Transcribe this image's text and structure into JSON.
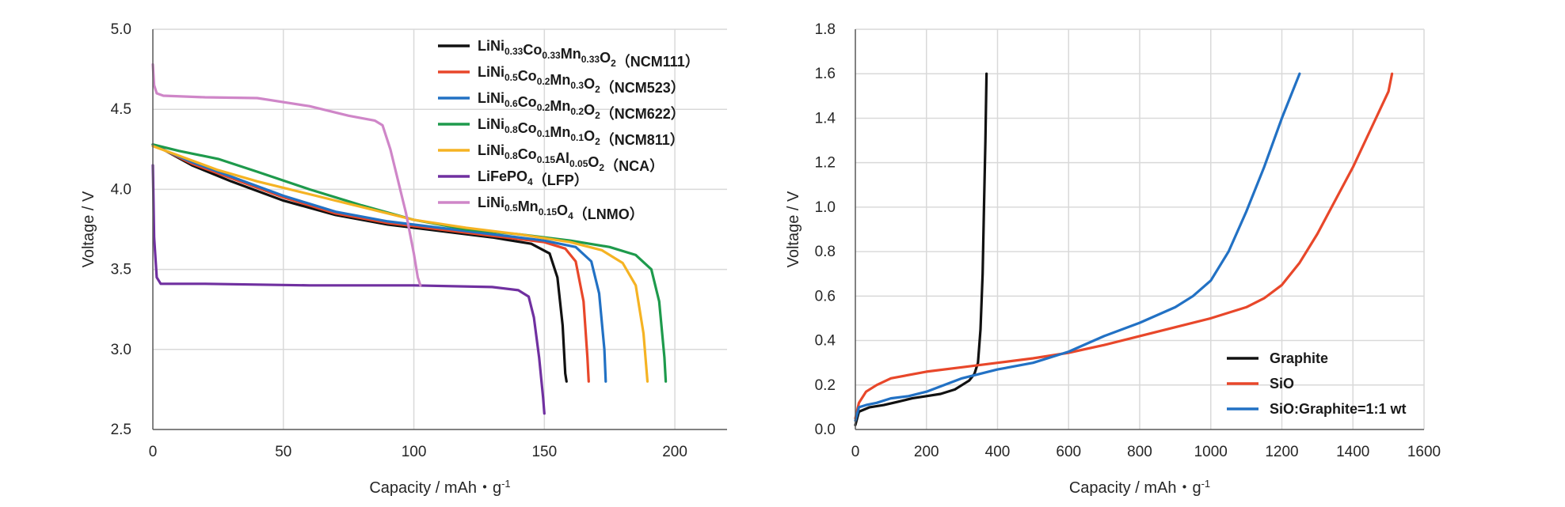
{
  "chart_data": [
    {
      "type": "line",
      "title": "",
      "xlabel": "Capacity / mAh・g",
      "xlabel_sup": "-1",
      "ylabel": "Voltage / V",
      "xlim": [
        0,
        220
      ],
      "ylim": [
        2.5,
        5.0
      ],
      "xticks": [
        "0",
        "50",
        "100",
        "150",
        "200"
      ],
      "yticks": [
        "2.5",
        "3.0",
        "3.5",
        "4.0",
        "4.5",
        "5.0"
      ],
      "legend_position": "top-right",
      "series": [
        {
          "name": "LiNi0.33Co0.33Mn0.33O2 (NCM111)",
          "name_parts": [
            [
              "LiNi",
              ""
            ],
            [
              "0.33",
              "sub"
            ],
            [
              "Co",
              ""
            ],
            [
              "0.33",
              "sub"
            ],
            [
              "Mn",
              ""
            ],
            [
              "0.33",
              "sub"
            ],
            [
              "O",
              ""
            ],
            [
              "2",
              "sub"
            ],
            [
              "（NCM111）",
              ""
            ]
          ],
          "color": "#111111",
          "x": [
            0,
            5,
            15,
            30,
            50,
            70,
            90,
            110,
            130,
            145,
            152,
            155,
            157,
            158,
            158.5
          ],
          "y": [
            4.28,
            4.24,
            4.15,
            4.05,
            3.93,
            3.84,
            3.78,
            3.74,
            3.7,
            3.66,
            3.6,
            3.45,
            3.15,
            2.85,
            2.8
          ]
        },
        {
          "name": "LiNi0.5Co0.2Mn0.3O2 (NCM523)",
          "name_parts": [
            [
              "LiNi",
              ""
            ],
            [
              "0.5",
              "sub"
            ],
            [
              "Co",
              ""
            ],
            [
              "0.2",
              "sub"
            ],
            [
              "Mn",
              ""
            ],
            [
              "0.3",
              "sub"
            ],
            [
              "O",
              ""
            ],
            [
              "2",
              "sub"
            ],
            [
              "（NCM523）",
              ""
            ]
          ],
          "color": "#E8472A",
          "x": [
            0,
            5,
            15,
            30,
            50,
            70,
            90,
            110,
            130,
            150,
            158,
            162,
            165,
            166.5,
            167
          ],
          "y": [
            4.28,
            4.24,
            4.16,
            4.07,
            3.95,
            3.85,
            3.79,
            3.75,
            3.71,
            3.67,
            3.63,
            3.55,
            3.3,
            2.95,
            2.8
          ]
        },
        {
          "name": "LiNi0.6Co0.2Mn0.2O2 (NCM622)",
          "name_parts": [
            [
              "LiNi",
              ""
            ],
            [
              "0.6",
              "sub"
            ],
            [
              "Co",
              ""
            ],
            [
              "0.2",
              "sub"
            ],
            [
              "Mn",
              ""
            ],
            [
              "0.2",
              "sub"
            ],
            [
              "O",
              ""
            ],
            [
              "2",
              "sub"
            ],
            [
              "（NCM622）",
              ""
            ]
          ],
          "color": "#2271C4",
          "x": [
            0,
            5,
            15,
            30,
            50,
            70,
            90,
            110,
            130,
            150,
            162,
            168,
            171,
            173,
            173.5
          ],
          "y": [
            4.28,
            4.24,
            4.17,
            4.08,
            3.96,
            3.86,
            3.8,
            3.76,
            3.72,
            3.68,
            3.64,
            3.55,
            3.35,
            3.0,
            2.8
          ]
        },
        {
          "name": "LiNi0.8Co0.1Mn0.1O2 (NCM811)",
          "name_parts": [
            [
              "LiNi",
              ""
            ],
            [
              "0.8",
              "sub"
            ],
            [
              "Co",
              ""
            ],
            [
              "0.1",
              "sub"
            ],
            [
              "Mn",
              ""
            ],
            [
              "0.1",
              "sub"
            ],
            [
              "O",
              ""
            ],
            [
              "2",
              "sub"
            ],
            [
              "（NCM811）",
              ""
            ]
          ],
          "color": "#1E9A4C",
          "x": [
            0,
            10,
            25,
            40,
            60,
            80,
            100,
            120,
            140,
            160,
            175,
            185,
            191,
            194,
            196,
            196.5
          ],
          "y": [
            4.28,
            4.24,
            4.19,
            4.11,
            4.0,
            3.9,
            3.81,
            3.75,
            3.72,
            3.68,
            3.64,
            3.59,
            3.5,
            3.3,
            2.95,
            2.8
          ]
        },
        {
          "name": "LiNi0.8Co0.15Al0.05O2 (NCA)",
          "name_parts": [
            [
              "LiNi",
              ""
            ],
            [
              "0.8",
              "sub"
            ],
            [
              "Co",
              ""
            ],
            [
              "0.15",
              "sub"
            ],
            [
              "Al",
              ""
            ],
            [
              "0.05",
              "sub"
            ],
            [
              "O",
              ""
            ],
            [
              "2",
              "sub"
            ],
            [
              "（NCA）",
              ""
            ]
          ],
          "color": "#F5B323",
          "x": [
            0,
            10,
            25,
            40,
            60,
            80,
            100,
            120,
            140,
            160,
            172,
            180,
            185,
            188,
            189.5
          ],
          "y": [
            4.27,
            4.21,
            4.12,
            4.05,
            3.97,
            3.89,
            3.81,
            3.76,
            3.72,
            3.67,
            3.62,
            3.54,
            3.4,
            3.1,
            2.8
          ]
        },
        {
          "name": "LiFePO4 (LFP)",
          "name_parts": [
            [
              "LiFePO",
              ""
            ],
            [
              "4",
              "sub"
            ],
            [
              "（LFP）",
              ""
            ]
          ],
          "color": "#7030A0",
          "x": [
            0,
            0.5,
            1.5,
            3,
            20,
            60,
            100,
            130,
            140,
            144,
            146,
            148,
            149.5,
            150
          ],
          "y": [
            4.15,
            3.7,
            3.45,
            3.41,
            3.41,
            3.4,
            3.4,
            3.39,
            3.37,
            3.33,
            3.2,
            2.95,
            2.7,
            2.6
          ]
        },
        {
          "name": "LiNi0.5Mn0.15O4 (LNMO)",
          "name_parts": [
            [
              "LiNi",
              ""
            ],
            [
              "0.5",
              "sub"
            ],
            [
              "Mn",
              ""
            ],
            [
              "0.15",
              "sub"
            ],
            [
              "O",
              ""
            ],
            [
              "4",
              "sub"
            ],
            [
              "（LNMO）",
              ""
            ]
          ],
          "color": "#CF86C8",
          "x": [
            0,
            0.5,
            1.5,
            4,
            20,
            40,
            60,
            75,
            85,
            88,
            91,
            94,
            97,
            100,
            101.5,
            102.5
          ],
          "y": [
            4.78,
            4.65,
            4.6,
            4.585,
            4.575,
            4.57,
            4.52,
            4.46,
            4.43,
            4.4,
            4.25,
            4.05,
            3.85,
            3.6,
            3.45,
            3.4
          ]
        }
      ]
    },
    {
      "type": "line",
      "title": "",
      "xlabel": "Capacity / mAh・g",
      "xlabel_sup": "-1",
      "ylabel": "Voltage / V",
      "xlim": [
        0,
        1600
      ],
      "ylim": [
        0,
        1.8
      ],
      "xticks": [
        "0",
        "200",
        "400",
        "600",
        "800",
        "1000",
        "1200",
        "1400",
        "1600"
      ],
      "yticks": [
        "0.0",
        "0.2",
        "0.4",
        "0.6",
        "0.8",
        "1.0",
        "1.2",
        "1.4",
        "1.6",
        "1.8"
      ],
      "legend_position": "bottom-right",
      "series": [
        {
          "name": "Graphite",
          "color": "#111111",
          "x": [
            0,
            10,
            40,
            80,
            120,
            160,
            200,
            240,
            280,
            300,
            320,
            335,
            345,
            352,
            358,
            362,
            366,
            369
          ],
          "y": [
            0.02,
            0.08,
            0.1,
            0.11,
            0.125,
            0.14,
            0.15,
            0.16,
            0.18,
            0.2,
            0.22,
            0.25,
            0.3,
            0.45,
            0.7,
            1.0,
            1.3,
            1.6
          ]
        },
        {
          "name": "SiO",
          "color": "#E8472A",
          "x": [
            0,
            10,
            30,
            60,
            100,
            200,
            300,
            400,
            500,
            600,
            700,
            800,
            900,
            1000,
            1100,
            1150,
            1200,
            1250,
            1300,
            1350,
            1400,
            1450,
            1500,
            1510
          ],
          "y": [
            0.05,
            0.12,
            0.17,
            0.2,
            0.23,
            0.26,
            0.28,
            0.3,
            0.32,
            0.345,
            0.38,
            0.42,
            0.46,
            0.5,
            0.55,
            0.59,
            0.65,
            0.75,
            0.88,
            1.03,
            1.18,
            1.35,
            1.52,
            1.6
          ]
        },
        {
          "name": "SiO:Graphite=1:1 wt",
          "color": "#2271C4",
          "x": [
            0,
            10,
            30,
            60,
            100,
            150,
            200,
            250,
            300,
            350,
            400,
            500,
            600,
            700,
            800,
            900,
            950,
            1000,
            1050,
            1100,
            1150,
            1200,
            1250
          ],
          "y": [
            0.04,
            0.1,
            0.11,
            0.12,
            0.14,
            0.15,
            0.17,
            0.2,
            0.23,
            0.25,
            0.27,
            0.3,
            0.35,
            0.42,
            0.48,
            0.55,
            0.6,
            0.67,
            0.8,
            0.98,
            1.18,
            1.4,
            1.6
          ]
        }
      ]
    }
  ]
}
